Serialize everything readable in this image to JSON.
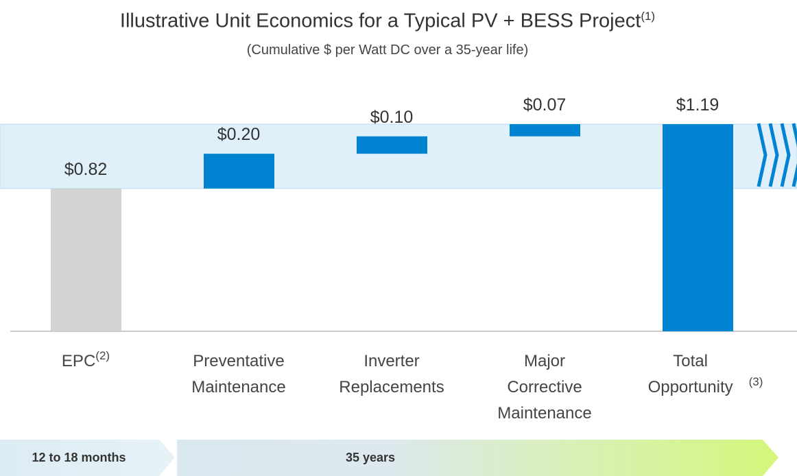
{
  "chart_data": {
    "type": "waterfall",
    "title": "Illustrative Unit Economics for a Typical PV + BESS Project",
    "title_note": "(1)",
    "subtitle": "(Cumulative $ per Watt DC over a 35-year life)",
    "categories": [
      "EPC",
      "Preventative Maintenance",
      "Inverter Replacements",
      "Major Corrective Maintenance",
      "Total Opportunity"
    ],
    "category_notes": [
      "(2)",
      null,
      null,
      null,
      "(3)"
    ],
    "values": [
      0.82,
      0.2,
      0.1,
      0.07,
      1.19
    ],
    "value_labels": [
      "$0.82",
      "$0.20",
      "$0.10",
      "$0.07",
      "$1.19"
    ],
    "colors": [
      "#d3d3d3",
      "#0084d1",
      "#0084d1",
      "#0084d1",
      "#0084d1"
    ],
    "ylim": [
      0,
      1.19
    ],
    "timeline": [
      "12 to 18 months",
      "35 years"
    ]
  }
}
